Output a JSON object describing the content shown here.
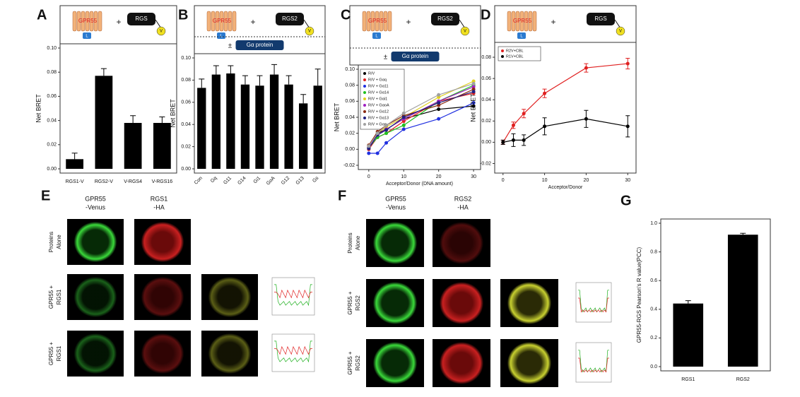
{
  "chart_data": [
    {
      "type": "bar",
      "panel_label": "A",
      "diagram": {
        "receptor": "GPR55",
        "plus": "+",
        "partner": "RGS",
        "tag": "V",
        "donor": "L"
      },
      "ylabel": "Net BRET",
      "categories": [
        "RGS1-V",
        "RGS2-V",
        "V-RGS4",
        "V-RGS16"
      ],
      "values": [
        0.008,
        0.077,
        0.038,
        0.038
      ],
      "errors": [
        0.005,
        0.006,
        0.006,
        0.005
      ],
      "color": "#000000",
      "ylim": [
        0,
        0.1
      ],
      "yticks": [
        {
          "value": 0,
          "label": "0.00"
        },
        {
          "value": 0.02,
          "label": "0.02"
        },
        {
          "value": 0.04,
          "label": "0.04"
        },
        {
          "value": 0.06,
          "label": "0.06"
        },
        {
          "value": 0.08,
          "label": "0.08"
        },
        {
          "value": 0.1,
          "label": "0.10"
        }
      ]
    },
    {
      "type": "bar",
      "panel_label": "B",
      "diagram": {
        "receptor": "GPR55",
        "plus": "+",
        "partner": "RGS2",
        "tag": "V",
        "donor": "L",
        "pm": "±",
        "gprotein": "Gα protein"
      },
      "ylabel": "Net BRET",
      "categories": [
        "Con",
        "Gq",
        "G11",
        "G14",
        "Gi1",
        "GoA",
        "G12",
        "G13",
        "Gs"
      ],
      "values": [
        0.073,
        0.085,
        0.086,
        0.076,
        0.075,
        0.085,
        0.076,
        0.059,
        0.075
      ],
      "errors": [
        0.008,
        0.008,
        0.007,
        0.008,
        0.009,
        0.009,
        0.008,
        0.008,
        0.015
      ],
      "color": "#000000",
      "ylim": [
        0,
        0.1
      ],
      "yticks": [
        {
          "value": 0,
          "label": "0.00"
        },
        {
          "value": 0.02,
          "label": "0.02"
        },
        {
          "value": 0.04,
          "label": "0.04"
        },
        {
          "value": 0.06,
          "label": "0.06"
        },
        {
          "value": 0.08,
          "label": "0.08"
        },
        {
          "value": 0.1,
          "label": "0.10"
        }
      ]
    },
    {
      "type": "line",
      "panel_label": "C",
      "diagram": {
        "receptor": "GPR55",
        "plus": "+",
        "partner": "RGS2",
        "tag": "V",
        "donor": "L",
        "pm": "±",
        "gprotein": "Gα protein"
      },
      "ylabel": "Net BRET",
      "xlabel": "Acceptor/Donor (DNA amount)",
      "x": [
        0,
        2.5,
        5,
        10,
        20,
        30
      ],
      "series": [
        {
          "name": "R/V",
          "color": "#000000",
          "values": [
            0.002,
            0.02,
            0.025,
            0.038,
            0.05,
            0.054
          ]
        },
        {
          "name": "R/V + Gαq",
          "color": "#e02020",
          "values": [
            0,
            0.015,
            0.02,
            0.035,
            0.06,
            0.07
          ]
        },
        {
          "name": "R/V + Gα11",
          "color": "#2030e0",
          "values": [
            -0.005,
            -0.005,
            0.008,
            0.025,
            0.038,
            0.058
          ]
        },
        {
          "name": "R/V + Gα14",
          "color": "#20c020",
          "values": [
            0.002,
            0.015,
            0.02,
            0.03,
            0.06,
            0.08
          ]
        },
        {
          "name": "R/V + Gαi1",
          "color": "#e0d020",
          "values": [
            0.004,
            0.02,
            0.028,
            0.04,
            0.065,
            0.085
          ]
        },
        {
          "name": "R/V + GαoA",
          "color": "#a020c0",
          "values": [
            0.003,
            0.018,
            0.025,
            0.038,
            0.06,
            0.078
          ]
        },
        {
          "name": "R/V + Gα12",
          "color": "#8b2a10",
          "values": [
            0.005,
            0.022,
            0.03,
            0.042,
            0.055,
            0.075
          ]
        },
        {
          "name": "R/V + Gα13",
          "color": "#202080",
          "values": [
            0.001,
            0.018,
            0.024,
            0.04,
            0.058,
            0.072
          ]
        },
        {
          "name": "R/V + Gαs",
          "color": "#a0a0a0",
          "values": [
            0.004,
            0.02,
            0.03,
            0.045,
            0.068,
            0.082
          ]
        }
      ],
      "xlim": [
        -3,
        32
      ],
      "xticks": [
        0,
        10,
        20,
        30
      ],
      "ylim": [
        -0.02,
        0.1
      ],
      "yticks": [
        {
          "value": -0.02,
          "label": "-0.02"
        },
        {
          "value": 0,
          "label": "0.00"
        },
        {
          "value": 0.02,
          "label": "0.02"
        },
        {
          "value": 0.04,
          "label": "0.04"
        },
        {
          "value": 0.06,
          "label": "0.06"
        },
        {
          "value": 0.08,
          "label": "0.08"
        },
        {
          "value": 0.1,
          "label": "0.10"
        }
      ]
    },
    {
      "type": "line",
      "panel_label": "D",
      "diagram": {
        "receptor": "GPR55",
        "plus": "+",
        "partner": "RGS",
        "tag": "V",
        "donor": "L"
      },
      "ylabel": "Net BRET",
      "xlabel": "Acceptor/Donor",
      "x": [
        0,
        2.5,
        5,
        10,
        20,
        30
      ],
      "series": [
        {
          "name": "R2V+CBL",
          "color": "#e02020",
          "values": [
            0,
            0.016,
            0.027,
            0.046,
            0.07,
            0.074
          ],
          "errors": [
            0.002,
            0.003,
            0.004,
            0.004,
            0.004,
            0.005
          ]
        },
        {
          "name": "R1V+CBL",
          "color": "#000000",
          "values": [
            0,
            0.002,
            0.002,
            0.015,
            0.022,
            0.015
          ],
          "errors": [
            0.002,
            0.006,
            0.005,
            0.008,
            0.008,
            0.01
          ]
        }
      ],
      "xlim": [
        -2,
        32
      ],
      "xticks": [
        0,
        10,
        20,
        30
      ],
      "ylim": [
        -0.025,
        0.09
      ],
      "yticks": [
        {
          "value": -0.02,
          "label": "-0.02"
        },
        {
          "value": 0,
          "label": "0.00"
        },
        {
          "value": 0.02,
          "label": "0.02"
        },
        {
          "value": 0.04,
          "label": "0.04"
        },
        {
          "value": 0.06,
          "label": "0.06"
        },
        {
          "value": 0.08,
          "label": "0.08"
        }
      ]
    },
    {
      "type": "bar",
      "panel_label": "G",
      "ylabel": "GPR55-RGS Pearson's R value(PCC)",
      "categories": [
        "RGS1",
        "RGS2"
      ],
      "values": [
        0.44,
        0.92
      ],
      "errors": [
        0.02,
        0.01
      ],
      "color": "#000000",
      "ylim": [
        0,
        1
      ],
      "yticks": [
        {
          "value": 0,
          "label": "0.0"
        },
        {
          "value": 0.2,
          "label": "0.2"
        },
        {
          "value": 0.4,
          "label": "0.4"
        },
        {
          "value": 0.6,
          "label": "0.6"
        },
        {
          "value": 0.8,
          "label": "0.8"
        },
        {
          "value": 1,
          "label": "1.0"
        }
      ]
    }
  ],
  "imaging_panels": [
    {
      "panel_label": "E",
      "columns": [
        [
          "GPR55",
          "-Venus"
        ],
        [
          "RGS1",
          "-HA"
        ]
      ],
      "rows": [
        [
          "Proteins",
          "Alone"
        ],
        [
          "GPR55 +",
          "RGS1"
        ],
        [
          "GPR55 +",
          "RGS1"
        ]
      ]
    },
    {
      "panel_label": "F",
      "columns": [
        [
          "GPR55",
          "-Venus"
        ],
        [
          "RGS2",
          "-HA"
        ]
      ],
      "rows": [
        [
          "Proteins",
          "Alone"
        ],
        [
          "GPR55 +",
          "RGS2"
        ],
        [
          "GPR55 +",
          "RGS2"
        ]
      ]
    }
  ]
}
